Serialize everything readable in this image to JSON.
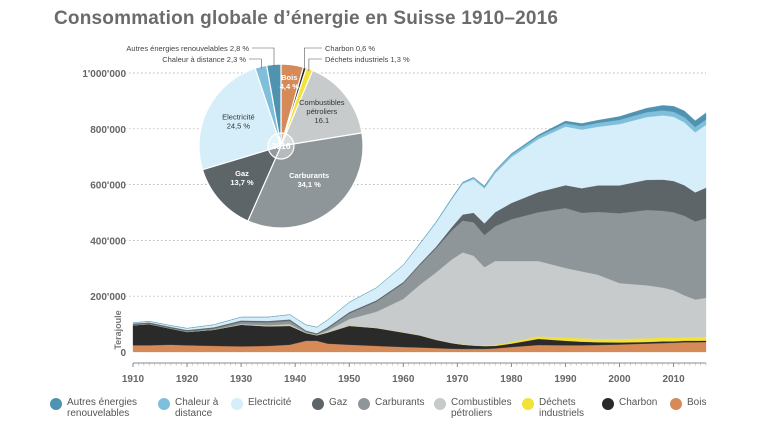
{
  "title": "Consommation globale d’énergie en Suisse 1910–2016",
  "colors": {
    "autres": "#4f93b0",
    "chaleur": "#7fbfdb",
    "electricite": "#d5eef9",
    "gaz": "#5e6569",
    "carburants": "#8e9699",
    "combustibles": "#c7cbcc",
    "dechets": "#f3e237",
    "charbon": "#2a2a2a",
    "bois": "#d58a58"
  },
  "chart_data": [
    {
      "type": "area",
      "ylabel": "Terajoule",
      "xlim": [
        1910,
        2016
      ],
      "ylim": [
        0,
        1000000
      ],
      "x_ticks": [
        1910,
        1920,
        1930,
        1940,
        1950,
        1960,
        1970,
        1980,
        1990,
        2000,
        2010
      ],
      "x_tick_labels": [
        "1910",
        "1920",
        "1930",
        "1940",
        "1950",
        "1960",
        "1970",
        "1980",
        "1990",
        "2000",
        "2010"
      ],
      "y_ticks": [
        200000,
        400000,
        600000,
        800000,
        1000000
      ],
      "y_tick_labels": [
        "200'000",
        "400'000",
        "600'000",
        "800'000",
        "1'000'000"
      ],
      "zero_label": "0",
      "x": [
        1910,
        1913,
        1917,
        1920,
        1925,
        1930,
        1935,
        1939,
        1942,
        1944,
        1946,
        1950,
        1955,
        1960,
        1963,
        1966,
        1969,
        1971,
        1973,
        1975,
        1977,
        1980,
        1985,
        1990,
        1993,
        1996,
        2000,
        2005,
        2008,
        2010,
        2012,
        2014,
        2016
      ],
      "series": [
        {
          "key": "bois",
          "name": "Bois",
          "values": [
            24000,
            24000,
            26000,
            24000,
            22000,
            20000,
            22000,
            26000,
            40000,
            40000,
            30000,
            26000,
            22000,
            18000,
            16000,
            14000,
            12000,
            11000,
            11000,
            11000,
            13000,
            18000,
            25000,
            24000,
            24000,
            25000,
            27000,
            30000,
            32000,
            33000,
            35000,
            35000,
            36000
          ]
        },
        {
          "key": "charbon",
          "name": "Charbon",
          "values": [
            72000,
            76000,
            58000,
            48000,
            58000,
            78000,
            70000,
            68000,
            28000,
            20000,
            40000,
            68000,
            64000,
            52000,
            44000,
            30000,
            20000,
            15000,
            12000,
            10000,
            9000,
            12000,
            22000,
            16000,
            13000,
            10000,
            7000,
            6000,
            6000,
            5000,
            5000,
            5000,
            5000
          ]
        },
        {
          "key": "dechets",
          "name": "Déchets industriels",
          "values": [
            0,
            0,
            0,
            0,
            0,
            0,
            0,
            0,
            0,
            0,
            0,
            0,
            0,
            0,
            0,
            0,
            0,
            1000,
            2000,
            3000,
            4000,
            6000,
            9000,
            11000,
            12000,
            12000,
            13000,
            13000,
            13000,
            13000,
            13000,
            13000,
            13000
          ]
        },
        {
          "key": "combustibles",
          "name": "Combustibles pétroliers",
          "values": [
            0,
            0,
            0,
            0,
            0,
            2000,
            4000,
            6000,
            2000,
            1000,
            6000,
            24000,
            58000,
            120000,
            180000,
            240000,
            300000,
            330000,
            320000,
            280000,
            300000,
            290000,
            270000,
            250000,
            240000,
            230000,
            200000,
            190000,
            180000,
            170000,
            150000,
            135000,
            140000
          ]
        },
        {
          "key": "carburants",
          "name": "Carburants",
          "values": [
            1000,
            1000,
            1000,
            2000,
            4000,
            8000,
            10000,
            12000,
            3000,
            2000,
            8000,
            20000,
            36000,
            56000,
            70000,
            86000,
            104000,
            114000,
            120000,
            115000,
            125000,
            150000,
            175000,
            215000,
            210000,
            225000,
            250000,
            270000,
            275000,
            280000,
            285000,
            280000,
            285000
          ]
        },
        {
          "key": "gaz",
          "name": "Gaz",
          "values": [
            5000,
            5000,
            5000,
            5000,
            5000,
            5000,
            5000,
            5000,
            4000,
            4000,
            5000,
            5000,
            5000,
            5000,
            5000,
            6000,
            12000,
            22000,
            34000,
            42000,
            50000,
            58000,
            72000,
            82000,
            88000,
            95000,
            100000,
            108000,
            112000,
            112000,
            110000,
            104000,
            110000
          ]
        },
        {
          "key": "electricite",
          "name": "Electricité",
          "values": [
            3000,
            4000,
            5000,
            6000,
            9000,
            12000,
            14000,
            17000,
            20000,
            22000,
            26000,
            35000,
            45000,
            60000,
            70000,
            85000,
            100000,
            110000,
            120000,
            125000,
            140000,
            165000,
            190000,
            210000,
            210000,
            210000,
            220000,
            225000,
            230000,
            230000,
            225000,
            215000,
            225000
          ]
        },
        {
          "key": "chaleur",
          "name": "Chaleur à distance",
          "values": [
            0,
            0,
            0,
            0,
            0,
            0,
            0,
            0,
            0,
            0,
            0,
            0,
            0,
            1000,
            2000,
            3000,
            4000,
            5000,
            6000,
            7000,
            8000,
            9000,
            10000,
            12000,
            13000,
            14000,
            15000,
            17000,
            18000,
            18000,
            19000,
            19000,
            19000
          ]
        },
        {
          "key": "autres",
          "name": "Autres énergies renouvelables",
          "values": [
            0,
            0,
            0,
            0,
            0,
            0,
            0,
            0,
            0,
            0,
            0,
            0,
            0,
            0,
            0,
            0,
            1000,
            1000,
            1000,
            2000,
            2000,
            3000,
            5000,
            8000,
            9000,
            10000,
            12000,
            15000,
            18000,
            20000,
            22000,
            23000,
            24000
          ]
        }
      ]
    },
    {
      "type": "pie",
      "center_label": "2016",
      "slices": [
        {
          "key": "bois",
          "name": "Bois",
          "value": 4.4,
          "label": "Bois 4,4 %",
          "line1": "Bois",
          "line2": "4,4 %"
        },
        {
          "key": "charbon",
          "name": "Charbon",
          "value": 0.6,
          "label": "Charbon 0,6 %"
        },
        {
          "key": "dechets",
          "name": "Déchets industriels",
          "value": 1.3,
          "label": "Déchets industriels 1,3 %"
        },
        {
          "key": "combustibles",
          "name": "Combustibles pétroliers",
          "value": 16.1,
          "line1": "Combustibles",
          "line2": "pétroliers",
          "line3": "16.1"
        },
        {
          "key": "carburants",
          "name": "Carburants",
          "value": 34.1,
          "line1": "Carburants",
          "line2": "34,1 %"
        },
        {
          "key": "gaz",
          "name": "Gaz",
          "value": 13.7,
          "line1": "Gaz",
          "line2": "13,7 %"
        },
        {
          "key": "electricite",
          "name": "Electricité",
          "value": 24.5,
          "line1": "Electricité",
          "line2": "24,5 %"
        },
        {
          "key": "chaleur",
          "name": "Chaleur à distance",
          "value": 2.3,
          "label": "Chaleur à distance 2,3 %"
        },
        {
          "key": "autres",
          "name": "Autres énergies renouvelables",
          "value": 2.8,
          "label": "Autres énergies renouvelables 2,8 %"
        }
      ]
    }
  ],
  "legend": [
    {
      "key": "autres",
      "line1": "Autres énergies",
      "line2": "renouvelables"
    },
    {
      "key": "chaleur",
      "line1": "Chaleur à",
      "line2": "distance"
    },
    {
      "key": "electricite",
      "line1": "Electricité",
      "line2": ""
    },
    {
      "key": "gaz",
      "line1": "Gaz",
      "line2": ""
    },
    {
      "key": "carburants",
      "line1": "Carburants",
      "line2": ""
    },
    {
      "key": "combustibles",
      "line1": "Combustibles",
      "line2": "pétroliers"
    },
    {
      "key": "dechets",
      "line1": "Déchets",
      "line2": "industriels"
    },
    {
      "key": "charbon",
      "line1": "Charbon",
      "line2": ""
    },
    {
      "key": "bois",
      "line1": "Bois",
      "line2": ""
    }
  ]
}
